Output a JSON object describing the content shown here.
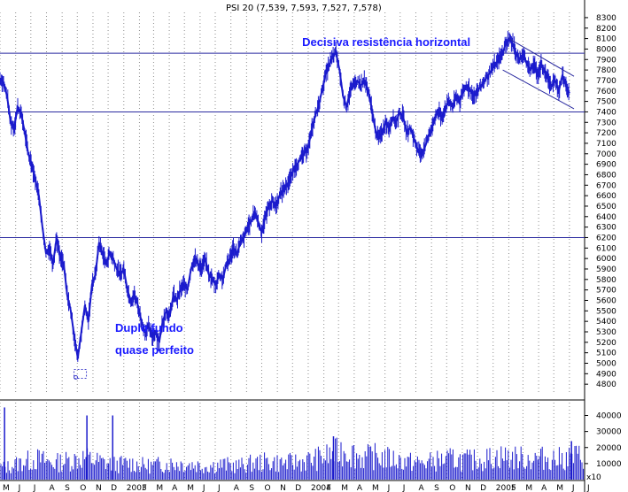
{
  "chart_data": {
    "type": "line",
    "title": "PSI 20 (7,539, 7,593, 7,527, 7,578)",
    "style": {
      "price_color": "#1a1acc",
      "volume_color": "#1a1acc",
      "level_line_color": "#2a2aa0",
      "grid_color": "#8c8c8c",
      "annotation_color": "#1a1aff"
    },
    "price_axis": {
      "min": 4700,
      "max": 8350,
      "ticks": [
        8300,
        8200,
        8100,
        8000,
        7900,
        7800,
        7700,
        7600,
        7500,
        7400,
        7300,
        7200,
        7100,
        7000,
        6900,
        6800,
        6700,
        6600,
        6500,
        6400,
        6300,
        6200,
        6100,
        6000,
        5900,
        5800,
        5700,
        5600,
        5500,
        5400,
        5300,
        5200,
        5100,
        5000,
        4900,
        4800
      ]
    },
    "volume_axis": {
      "min": 0,
      "max": 48000,
      "ticks": [
        40000,
        30000,
        20000,
        10000
      ],
      "multiplier_label": "x10"
    },
    "x_axis": {
      "start": "2002-05-01",
      "end": "2005-07-01",
      "labels": [
        {
          "date": "2002-05-01",
          "label": "M"
        },
        {
          "date": "2002-06-01",
          "label": "J"
        },
        {
          "date": "2002-07-01",
          "label": "J"
        },
        {
          "date": "2002-08-01",
          "label": "A"
        },
        {
          "date": "2002-09-01",
          "label": "S"
        },
        {
          "date": "2002-10-01",
          "label": "O"
        },
        {
          "date": "2002-11-01",
          "label": "N"
        },
        {
          "date": "2002-12-01",
          "label": "D"
        },
        {
          "date": "2003-01-01",
          "label": "2003"
        },
        {
          "date": "2003-02-01",
          "label": "F"
        },
        {
          "date": "2003-03-01",
          "label": "M"
        },
        {
          "date": "2003-04-01",
          "label": "A"
        },
        {
          "date": "2003-05-01",
          "label": "M"
        },
        {
          "date": "2003-06-01",
          "label": "J"
        },
        {
          "date": "2003-07-01",
          "label": "J"
        },
        {
          "date": "2003-08-01",
          "label": "A"
        },
        {
          "date": "2003-09-01",
          "label": "S"
        },
        {
          "date": "2003-10-01",
          "label": "O"
        },
        {
          "date": "2003-11-01",
          "label": "N"
        },
        {
          "date": "2003-12-01",
          "label": "D"
        },
        {
          "date": "2004-01-01",
          "label": "2004"
        },
        {
          "date": "2004-02-01",
          "label": "F"
        },
        {
          "date": "2004-03-01",
          "label": "M"
        },
        {
          "date": "2004-04-01",
          "label": "A"
        },
        {
          "date": "2004-05-01",
          "label": "M"
        },
        {
          "date": "2004-06-01",
          "label": "J"
        },
        {
          "date": "2004-07-01",
          "label": "J"
        },
        {
          "date": "2004-08-01",
          "label": "A"
        },
        {
          "date": "2004-09-01",
          "label": "S"
        },
        {
          "date": "2004-10-01",
          "label": "O"
        },
        {
          "date": "2004-11-01",
          "label": "N"
        },
        {
          "date": "2004-12-01",
          "label": "D"
        },
        {
          "date": "2005-01-01",
          "label": "2005"
        },
        {
          "date": "2005-02-01",
          "label": "F"
        },
        {
          "date": "2005-03-01",
          "label": "M"
        },
        {
          "date": "2005-04-01",
          "label": "A"
        },
        {
          "date": "2005-05-01",
          "label": "M"
        },
        {
          "date": "2005-06-01",
          "label": "J"
        },
        {
          "date": "2005-07-01",
          "label": "J"
        }
      ]
    },
    "series": [
      {
        "points": [
          [
            "2002-05-01",
            7720
          ],
          [
            "2002-05-08",
            7680
          ],
          [
            "2002-05-15",
            7550
          ],
          [
            "2002-05-22",
            7300
          ],
          [
            "2002-05-29",
            7250
          ],
          [
            "2002-06-05",
            7450
          ],
          [
            "2002-06-12",
            7380
          ],
          [
            "2002-06-19",
            7200
          ],
          [
            "2002-06-26",
            7000
          ],
          [
            "2002-07-03",
            6900
          ],
          [
            "2002-07-10",
            6750
          ],
          [
            "2002-07-17",
            6600
          ],
          [
            "2002-07-24",
            6300
          ],
          [
            "2002-07-31",
            6050
          ],
          [
            "2002-08-07",
            6100
          ],
          [
            "2002-08-14",
            5950
          ],
          [
            "2002-08-21",
            6200
          ],
          [
            "2002-08-28",
            6000
          ],
          [
            "2002-09-04",
            5950
          ],
          [
            "2002-09-11",
            5650
          ],
          [
            "2002-09-18",
            5500
          ],
          [
            "2002-09-25",
            5250
          ],
          [
            "2002-10-02",
            5050
          ],
          [
            "2002-10-09",
            5300
          ],
          [
            "2002-10-16",
            5550
          ],
          [
            "2002-10-23",
            5400
          ],
          [
            "2002-10-30",
            5750
          ],
          [
            "2002-11-06",
            5850
          ],
          [
            "2002-11-13",
            6150
          ],
          [
            "2002-11-20",
            6050
          ],
          [
            "2002-11-27",
            5950
          ],
          [
            "2002-12-04",
            6050
          ],
          [
            "2002-12-11",
            6000
          ],
          [
            "2002-12-18",
            5900
          ],
          [
            "2002-12-25",
            5850
          ],
          [
            "2003-01-01",
            5900
          ],
          [
            "2003-01-08",
            5700
          ],
          [
            "2003-01-15",
            5600
          ],
          [
            "2003-01-22",
            5650
          ],
          [
            "2003-01-29",
            5550
          ],
          [
            "2003-02-05",
            5400
          ],
          [
            "2003-02-12",
            5300
          ],
          [
            "2003-02-19",
            5350
          ],
          [
            "2003-02-26",
            5250
          ],
          [
            "2003-03-05",
            5300
          ],
          [
            "2003-03-12",
            5200
          ],
          [
            "2003-03-19",
            5400
          ],
          [
            "2003-03-26",
            5500
          ],
          [
            "2003-04-02",
            5450
          ],
          [
            "2003-04-09",
            5650
          ],
          [
            "2003-04-16",
            5600
          ],
          [
            "2003-04-23",
            5700
          ],
          [
            "2003-04-30",
            5750
          ],
          [
            "2003-05-07",
            5700
          ],
          [
            "2003-05-14",
            5900
          ],
          [
            "2003-05-21",
            6000
          ],
          [
            "2003-05-28",
            5950
          ],
          [
            "2003-06-04",
            5900
          ],
          [
            "2003-06-11",
            6000
          ],
          [
            "2003-06-18",
            5850
          ],
          [
            "2003-06-25",
            5800
          ],
          [
            "2003-07-02",
            5750
          ],
          [
            "2003-07-09",
            5850
          ],
          [
            "2003-07-16",
            5800
          ],
          [
            "2003-07-23",
            5950
          ],
          [
            "2003-07-30",
            6000
          ],
          [
            "2003-08-06",
            6100
          ],
          [
            "2003-08-13",
            6050
          ],
          [
            "2003-08-20",
            6150
          ],
          [
            "2003-08-27",
            6200
          ],
          [
            "2003-09-03",
            6300
          ],
          [
            "2003-09-10",
            6350
          ],
          [
            "2003-09-17",
            6450
          ],
          [
            "2003-09-24",
            6350
          ],
          [
            "2003-10-01",
            6250
          ],
          [
            "2003-10-08",
            6400
          ],
          [
            "2003-10-15",
            6500
          ],
          [
            "2003-10-22",
            6550
          ],
          [
            "2003-10-29",
            6500
          ],
          [
            "2003-11-05",
            6600
          ],
          [
            "2003-11-12",
            6650
          ],
          [
            "2003-11-19",
            6700
          ],
          [
            "2003-11-26",
            6750
          ],
          [
            "2003-12-03",
            6850
          ],
          [
            "2003-12-10",
            6900
          ],
          [
            "2003-12-17",
            6950
          ],
          [
            "2003-12-24",
            7000
          ],
          [
            "2003-12-31",
            7050
          ],
          [
            "2004-01-07",
            7200
          ],
          [
            "2004-01-14",
            7350
          ],
          [
            "2004-01-21",
            7450
          ],
          [
            "2004-01-28",
            7600
          ],
          [
            "2004-02-04",
            7750
          ],
          [
            "2004-02-11",
            7850
          ],
          [
            "2004-02-18",
            7920
          ],
          [
            "2004-02-25",
            7970
          ],
          [
            "2004-03-03",
            7800
          ],
          [
            "2004-03-10",
            7550
          ],
          [
            "2004-03-17",
            7450
          ],
          [
            "2004-03-24",
            7600
          ],
          [
            "2004-03-31",
            7650
          ],
          [
            "2004-04-07",
            7700
          ],
          [
            "2004-04-14",
            7650
          ],
          [
            "2004-04-21",
            7700
          ],
          [
            "2004-04-28",
            7600
          ],
          [
            "2004-05-05",
            7450
          ],
          [
            "2004-05-12",
            7250
          ],
          [
            "2004-05-19",
            7150
          ],
          [
            "2004-05-26",
            7200
          ],
          [
            "2004-06-02",
            7300
          ],
          [
            "2004-06-09",
            7250
          ],
          [
            "2004-06-16",
            7350
          ],
          [
            "2004-06-23",
            7300
          ],
          [
            "2004-06-30",
            7400
          ],
          [
            "2004-07-07",
            7350
          ],
          [
            "2004-07-14",
            7200
          ],
          [
            "2004-07-21",
            7250
          ],
          [
            "2004-07-28",
            7150
          ],
          [
            "2004-08-04",
            7050
          ],
          [
            "2004-08-11",
            7000
          ],
          [
            "2004-08-18",
            7050
          ],
          [
            "2004-08-25",
            7150
          ],
          [
            "2004-09-01",
            7250
          ],
          [
            "2004-09-08",
            7350
          ],
          [
            "2004-09-15",
            7400
          ],
          [
            "2004-09-22",
            7350
          ],
          [
            "2004-09-29",
            7450
          ],
          [
            "2004-10-06",
            7500
          ],
          [
            "2004-10-13",
            7450
          ],
          [
            "2004-10-20",
            7550
          ],
          [
            "2004-10-27",
            7500
          ],
          [
            "2004-11-03",
            7600
          ],
          [
            "2004-11-10",
            7650
          ],
          [
            "2004-11-17",
            7600
          ],
          [
            "2004-11-24",
            7550
          ],
          [
            "2004-12-01",
            7600
          ],
          [
            "2004-12-08",
            7650
          ],
          [
            "2004-12-15",
            7700
          ],
          [
            "2004-12-22",
            7750
          ],
          [
            "2004-12-29",
            7800
          ],
          [
            "2005-01-05",
            7850
          ],
          [
            "2005-01-12",
            7900
          ],
          [
            "2005-01-19",
            7950
          ],
          [
            "2005-01-26",
            8050
          ],
          [
            "2005-02-02",
            8100
          ],
          [
            "2005-02-09",
            8050
          ],
          [
            "2005-02-16",
            7950
          ],
          [
            "2005-02-23",
            7900
          ],
          [
            "2005-03-02",
            7950
          ],
          [
            "2005-03-09",
            7850
          ],
          [
            "2005-03-16",
            7800
          ],
          [
            "2005-03-23",
            7850
          ],
          [
            "2005-03-30",
            7750
          ],
          [
            "2005-04-06",
            7850
          ],
          [
            "2005-04-13",
            7800
          ],
          [
            "2005-04-20",
            7700
          ],
          [
            "2005-04-27",
            7650
          ],
          [
            "2005-05-04",
            7700
          ],
          [
            "2005-05-11",
            7600
          ],
          [
            "2005-05-18",
            7750
          ],
          [
            "2005-05-25",
            7650
          ],
          [
            "2005-06-01",
            7578
          ]
        ]
      }
    ],
    "horizontal_levels": [
      7960,
      7400,
      6200
    ],
    "channel_lines": [
      [
        [
          "2005-02-01",
          8100
        ],
        [
          "2005-06-10",
          7740
        ]
      ],
      [
        [
          "2005-01-20",
          7800
        ],
        [
          "2005-06-10",
          7430
        ]
      ]
    ],
    "annotations": [
      {
        "text": "Decisiva resistência horizontal",
        "date": "2003-12-20",
        "value": 8030
      },
      {
        "text": "Duplo fundo",
        "date": "2002-12-15",
        "value": 5300
      },
      {
        "text": "quase perfeito",
        "date": "2002-12-15",
        "value": 5090
      }
    ],
    "volume": [
      [
        "2002-05-15",
        9000
      ],
      [
        "2002-06-15",
        13000
      ],
      [
        "2002-07-15",
        15000
      ],
      [
        "2002-08-15",
        12000
      ],
      [
        "2002-09-15",
        14000
      ],
      [
        "2002-10-15",
        16000
      ],
      [
        "2002-11-15",
        13000
      ],
      [
        "2002-12-15",
        11000
      ],
      [
        "2003-01-15",
        12000
      ],
      [
        "2003-02-15",
        10000
      ],
      [
        "2003-03-15",
        11000
      ],
      [
        "2003-04-15",
        12000
      ],
      [
        "2003-05-15",
        11000
      ],
      [
        "2003-06-15",
        10000
      ],
      [
        "2003-07-15",
        11000
      ],
      [
        "2003-08-15",
        10000
      ],
      [
        "2003-09-15",
        12000
      ],
      [
        "2003-10-15",
        13000
      ],
      [
        "2003-11-15",
        12000
      ],
      [
        "2003-12-15",
        13000
      ],
      [
        "2004-01-15",
        15000
      ],
      [
        "2004-02-15",
        18000
      ],
      [
        "2004-03-15",
        22000
      ],
      [
        "2004-04-15",
        16000
      ],
      [
        "2004-05-15",
        17000
      ],
      [
        "2004-06-15",
        15000
      ],
      [
        "2004-07-15",
        13000
      ],
      [
        "2004-08-15",
        12000
      ],
      [
        "2004-09-15",
        14000
      ],
      [
        "2004-10-15",
        15000
      ],
      [
        "2004-11-15",
        14000
      ],
      [
        "2004-12-15",
        15000
      ],
      [
        "2005-01-15",
        17000
      ],
      [
        "2005-02-15",
        16000
      ],
      [
        "2005-03-15",
        15000
      ],
      [
        "2005-04-15",
        16000
      ],
      [
        "2005-05-15",
        15000
      ],
      [
        "2005-06-15",
        17000
      ]
    ],
    "volume_spikes": [
      [
        "2002-05-10",
        45000
      ],
      [
        "2002-10-20",
        40000
      ],
      [
        "2002-12-10",
        40000
      ],
      [
        "2004-02-20",
        27000
      ],
      [
        "2005-06-05",
        24000
      ]
    ]
  }
}
